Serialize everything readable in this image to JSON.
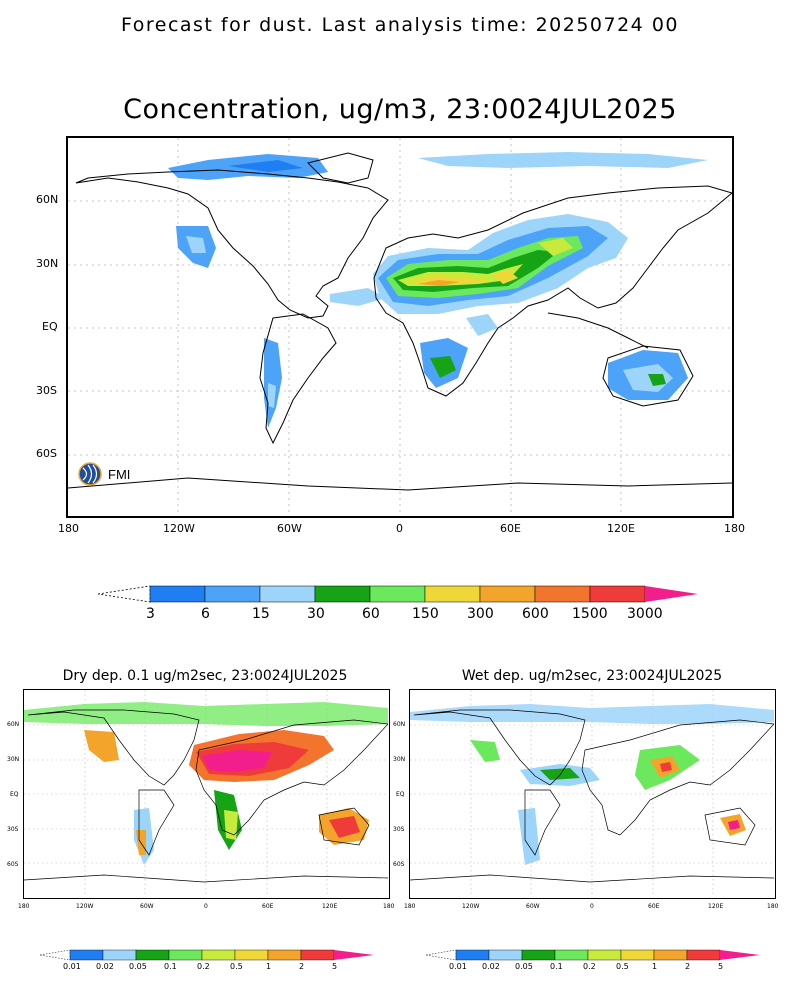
{
  "header": "Forecast for dust. Last analysis time: 20250724 00",
  "main": {
    "title": "Concentration, ug/m3, 23:0024JUL2025",
    "lat_labels": [
      "60N",
      "30N",
      "EQ",
      "30S",
      "60S"
    ],
    "lon_labels": [
      "180",
      "120W",
      "60W",
      "0",
      "60E",
      "120E",
      "180"
    ],
    "logo_text": "FMI"
  },
  "colorbar_main": {
    "labels": [
      "3",
      "6",
      "15",
      "30",
      "60",
      "150",
      "300",
      "600",
      "1500",
      "3000"
    ],
    "colors": [
      "#1f7ff2",
      "#4ca3f7",
      "#9dd4f9",
      "#16a416",
      "#6be85c",
      "#c8ea3c",
      "#f0d738",
      "#f3a42b",
      "#f3742d",
      "#f03b3b",
      "#f21e8c"
    ]
  },
  "dry": {
    "title": "Dry dep. 0.1 ug/m2sec, 23:0024JUL2025",
    "lat_labels": [
      "60N",
      "30N",
      "EQ",
      "30S",
      "60S"
    ],
    "lon_labels": [
      "180",
      "120W",
      "60W",
      "0",
      "60E",
      "120E",
      "180"
    ]
  },
  "wet": {
    "title": "Wet dep. ug/m2sec, 23:0024JUL2025",
    "lat_labels": [
      "60N",
      "30N",
      "EQ",
      "30S",
      "60S"
    ],
    "lon_labels": [
      "180",
      "120W",
      "60W",
      "0",
      "60E",
      "120E",
      "180"
    ]
  },
  "colorbar_small": {
    "labels": [
      "0.01",
      "0.02",
      "0.05",
      "0.1",
      "0.2",
      "0.5",
      "1",
      "2",
      "5"
    ],
    "colors": [
      "#1f7ff2",
      "#9dd4f9",
      "#16a416",
      "#6be85c",
      "#c8ea3c",
      "#f0d738",
      "#f3a42b",
      "#f03b3b",
      "#f21e8c"
    ]
  }
}
